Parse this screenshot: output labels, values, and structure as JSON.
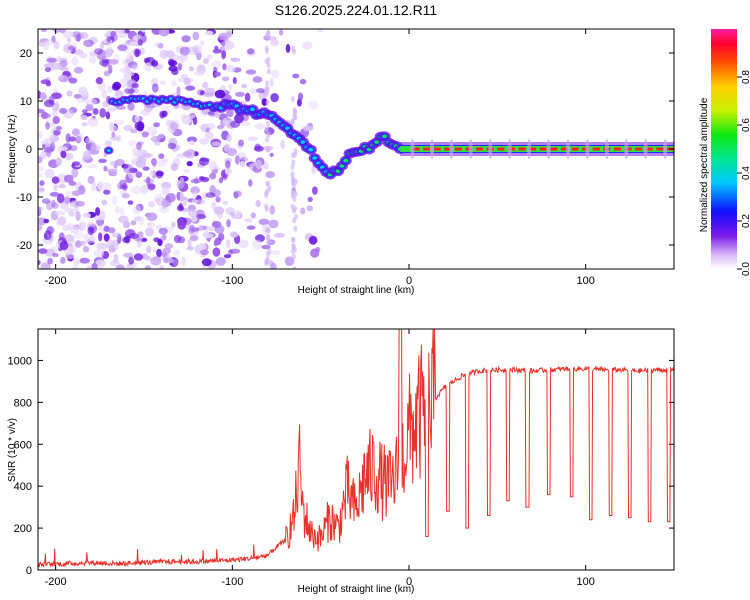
{
  "title": "S126.2025.224.01.12.R11",
  "chart_data": [
    {
      "type": "heatmap",
      "name": "spectrogram",
      "xlabel": "Height of straight line (km)",
      "ylabel": "Frequency (Hz)",
      "xlim": [
        -210,
        150
      ],
      "ylim": [
        -25,
        25
      ],
      "xticks": [
        -200,
        -100,
        0,
        100
      ],
      "xtick_labels": [
        "-200",
        "-100",
        "0",
        "100"
      ],
      "yticks": [
        -20,
        -10,
        0,
        10,
        20
      ],
      "ytick_labels": [
        "-20",
        "-10",
        "0",
        "10",
        "20"
      ],
      "colorbar": {
        "label": "Normalized spectral amplitude",
        "range": [
          0,
          1
        ],
        "ticks": [
          0.0,
          0.2,
          0.4,
          0.6,
          0.8
        ],
        "tick_labels": [
          "0.0",
          "0.2",
          "0.4",
          "0.6",
          "0.8"
        ]
      },
      "ridge": {
        "x": [
          -168,
          -155,
          -140,
          -125,
          -110,
          -100,
          -90,
          -80,
          -70,
          -60,
          -55,
          -50,
          -45,
          -40,
          -35,
          -30,
          -25,
          -20,
          -15,
          -10,
          -5,
          0,
          20,
          50,
          100,
          150
        ],
        "y": [
          10,
          10,
          10.5,
          10,
          9,
          9,
          8,
          7,
          4.5,
          2,
          -1,
          -4,
          -5,
          -4,
          -2,
          0,
          0,
          0.5,
          3.5,
          0.5,
          0,
          0,
          0,
          0,
          0,
          0
        ]
      }
    },
    {
      "type": "line",
      "name": "snr",
      "xlabel": "Height of straight line (km)",
      "ylabel": "SNR (10 * v/v)",
      "xlim": [
        -210,
        150
      ],
      "ylim": [
        0,
        1150
      ],
      "xticks": [
        -200,
        -100,
        0,
        100
      ],
      "xtick_labels": [
        "-200",
        "-100",
        "0",
        "100"
      ],
      "yticks": [
        0,
        200,
        400,
        600,
        800,
        1000
      ],
      "ytick_labels": [
        "0",
        "200",
        "400",
        "600",
        "800",
        "1000"
      ],
      "color": "#e8312a",
      "series": [
        {
          "name": "SNR",
          "x": [
            -210,
            -195,
            -180,
            -165,
            -150,
            -135,
            -120,
            -105,
            -90,
            -80,
            -75,
            -70,
            -65,
            -62,
            -60,
            -55,
            -50,
            -45,
            -40,
            -35,
            -30,
            -25,
            -20,
            -15,
            -10,
            -5,
            0,
            5,
            10,
            15,
            20,
            25,
            30,
            35,
            40,
            50,
            60,
            70,
            80,
            90,
            100,
            110,
            120,
            130,
            140,
            150
          ],
          "y": [
            25,
            30,
            35,
            30,
            35,
            40,
            40,
            45,
            55,
            70,
            110,
            140,
            250,
            500,
            280,
            170,
            150,
            250,
            200,
            380,
            280,
            450,
            480,
            420,
            400,
            500,
            650,
            720,
            780,
            820,
            870,
            900,
            925,
            940,
            950,
            955,
            955,
            950,
            955,
            960,
            960,
            955,
            955,
            950,
            955,
            955
          ]
        }
      ],
      "dropouts": {
        "x": [
          -5,
          10,
          22,
          33,
          45,
          56,
          67,
          79,
          92,
          103,
          114,
          125,
          136,
          147
        ],
        "y": [
          1150,
          160,
          280,
          200,
          260,
          330,
          300,
          360,
          350,
          240,
          260,
          250,
          230,
          230
        ]
      }
    }
  ]
}
